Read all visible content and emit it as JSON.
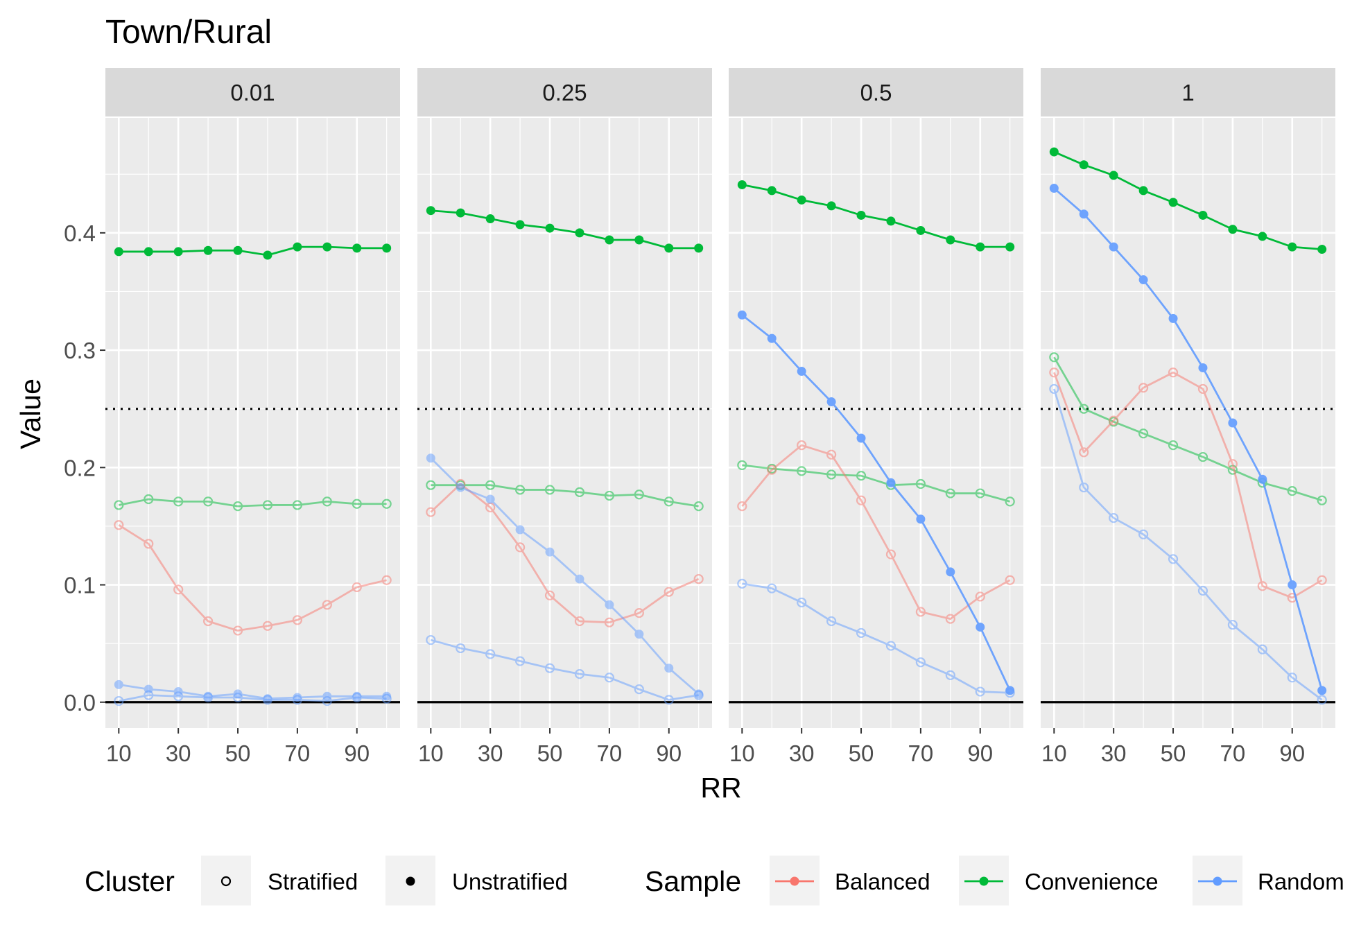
{
  "chart_data": {
    "type": "line",
    "title": "Town/Rural",
    "xlabel": "RR",
    "ylabel": "Value",
    "x": [
      10,
      20,
      30,
      40,
      50,
      60,
      70,
      80,
      90,
      100
    ],
    "x_ticks": [
      10,
      30,
      50,
      70,
      90
    ],
    "y_ticks": [
      0.0,
      0.1,
      0.2,
      0.3,
      0.4
    ],
    "y_tick_labels": [
      "0.0",
      "0.1",
      "0.2",
      "0.3",
      "0.4"
    ],
    "ylim": [
      -0.022,
      0.498
    ],
    "hline_solid": 0,
    "hline_dotted": 0.25,
    "grid": true,
    "legend_position": "bottom",
    "legend": {
      "cluster_title": "Cluster",
      "cluster_items": [
        "Stratified",
        "Unstratified"
      ],
      "sample_title": "Sample",
      "sample_items": [
        "Balanced",
        "Convenience",
        "Random"
      ]
    },
    "colors": {
      "Balanced": "#F8766D",
      "Convenience": "#00BA38",
      "Random": "#619CFF",
      "panel_bg": "#EBEBEB",
      "strip_bg": "#D9D9D9",
      "grid": "#FFFFFF"
    },
    "panels": [
      {
        "label": "0.01",
        "series": [
          {
            "sample": "Convenience",
            "cluster": "Unstratified",
            "values": [
              0.384,
              0.384,
              0.384,
              0.385,
              0.385,
              0.381,
              0.388,
              0.388,
              0.387,
              0.387
            ]
          },
          {
            "sample": "Convenience",
            "cluster": "Stratified",
            "values": [
              0.168,
              0.173,
              0.171,
              0.171,
              0.167,
              0.168,
              0.168,
              0.171,
              0.169,
              0.169
            ]
          },
          {
            "sample": "Balanced",
            "cluster": "Stratified",
            "values": [
              0.151,
              0.135,
              0.096,
              0.069,
              0.061,
              0.065,
              0.07,
              0.083,
              0.098,
              0.104
            ]
          },
          {
            "sample": "Random",
            "cluster": "Unstratified",
            "values": [
              0.015,
              0.011,
              0.009,
              0.005,
              0.007,
              0.003,
              0.004,
              0.005,
              0.005,
              0.005
            ]
          },
          {
            "sample": "Random",
            "cluster": "Stratified",
            "values": [
              0.001,
              0.006,
              0.005,
              0.004,
              0.004,
              0.002,
              0.002,
              0.001,
              0.004,
              0.003
            ]
          }
        ]
      },
      {
        "label": "0.25",
        "series": [
          {
            "sample": "Convenience",
            "cluster": "Unstratified",
            "values": [
              0.419,
              0.417,
              0.412,
              0.407,
              0.404,
              0.4,
              0.394,
              0.394,
              0.387,
              0.387
            ]
          },
          {
            "sample": "Convenience",
            "cluster": "Stratified",
            "values": [
              0.185,
              0.185,
              0.185,
              0.181,
              0.181,
              0.179,
              0.176,
              0.177,
              0.171,
              0.167
            ]
          },
          {
            "sample": "Balanced",
            "cluster": "Stratified",
            "values": [
              0.162,
              0.186,
              0.166,
              0.132,
              0.091,
              0.069,
              0.068,
              0.076,
              0.094,
              0.105
            ]
          },
          {
            "sample": "Random",
            "cluster": "Unstratified",
            "values": [
              0.208,
              0.183,
              0.173,
              0.147,
              0.128,
              0.105,
              0.083,
              0.058,
              0.029,
              0.007
            ]
          },
          {
            "sample": "Random",
            "cluster": "Stratified",
            "values": [
              0.053,
              0.046,
              0.041,
              0.035,
              0.029,
              0.024,
              0.021,
              0.011,
              0.002,
              0.006
            ]
          }
        ]
      },
      {
        "label": "0.5",
        "series": [
          {
            "sample": "Convenience",
            "cluster": "Unstratified",
            "values": [
              0.441,
              0.436,
              0.428,
              0.423,
              0.415,
              0.41,
              0.402,
              0.394,
              0.388,
              0.388
            ]
          },
          {
            "sample": "Convenience",
            "cluster": "Stratified",
            "values": [
              0.202,
              0.199,
              0.197,
              0.194,
              0.193,
              0.185,
              0.186,
              0.178,
              0.178,
              0.171
            ]
          },
          {
            "sample": "Balanced",
            "cluster": "Stratified",
            "values": [
              0.167,
              0.198,
              0.219,
              0.211,
              0.172,
              0.126,
              0.077,
              0.071,
              0.09,
              0.104
            ]
          },
          {
            "sample": "Random",
            "cluster": "Unstratified",
            "values": [
              0.33,
              0.31,
              0.282,
              0.256,
              0.225,
              0.187,
              0.156,
              0.111,
              0.064,
              0.01
            ]
          },
          {
            "sample": "Random",
            "cluster": "Stratified",
            "values": [
              0.101,
              0.097,
              0.085,
              0.069,
              0.059,
              0.048,
              0.034,
              0.023,
              0.009,
              0.008
            ]
          }
        ]
      },
      {
        "label": "1",
        "series": [
          {
            "sample": "Convenience",
            "cluster": "Unstratified",
            "values": [
              0.469,
              0.458,
              0.449,
              0.436,
              0.426,
              0.415,
              0.403,
              0.397,
              0.388,
              0.386
            ]
          },
          {
            "sample": "Convenience",
            "cluster": "Stratified",
            "values": [
              0.294,
              0.25,
              0.239,
              0.229,
              0.219,
              0.209,
              0.198,
              0.187,
              0.18,
              0.172
            ]
          },
          {
            "sample": "Balanced",
            "cluster": "Stratified",
            "values": [
              0.281,
              0.213,
              0.24,
              0.268,
              0.281,
              0.267,
              0.203,
              0.099,
              0.089,
              0.104
            ]
          },
          {
            "sample": "Random",
            "cluster": "Unstratified",
            "values": [
              0.438,
              0.416,
              0.388,
              0.36,
              0.327,
              0.285,
              0.238,
              0.19,
              0.1,
              0.01
            ]
          },
          {
            "sample": "Random",
            "cluster": "Stratified",
            "values": [
              0.267,
              0.183,
              0.157,
              0.143,
              0.122,
              0.095,
              0.066,
              0.045,
              0.021,
              0.002
            ]
          }
        ]
      }
    ]
  }
}
